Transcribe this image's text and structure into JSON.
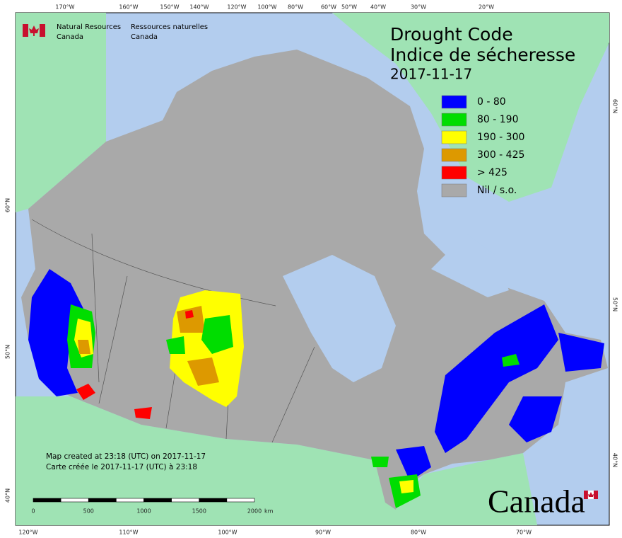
{
  "agency": {
    "en_line1": "Natural Resources",
    "en_line2": "Canada",
    "fr_line1": "Ressources naturelles",
    "fr_line2": "Canada"
  },
  "title": {
    "en": "Drought Code",
    "fr": "Indice de sécheresse",
    "date": "2017-11-17"
  },
  "legend": [
    {
      "label": "0 - 80",
      "color": "#0000ff"
    },
    {
      "label": "80 - 190",
      "color": "#00dd00"
    },
    {
      "label": "190 - 300",
      "color": "#ffff00"
    },
    {
      "label": "300 - 425",
      "color": "#dd9900"
    },
    {
      "label": "> 425",
      "color": "#ff0000"
    },
    {
      "label": "Nil / s.o.",
      "color": "#a9a9a9"
    }
  ],
  "graticule": {
    "top": [
      "170°W",
      "160°W",
      "150°W",
      "140°W",
      "120°W",
      "100°W",
      "80°W",
      "60°W",
      "50°W",
      "40°W",
      "30°W",
      "20°W"
    ],
    "left": [
      "60°N",
      "50°N",
      "40°N"
    ],
    "right": [
      "60°N",
      "50°N",
      "40°N"
    ],
    "bottom": [
      "120°W",
      "110°W",
      "100°W",
      "90°W",
      "80°W",
      "70°W"
    ]
  },
  "footer": [
    "Map created at 23:18 (UTC) on 2017-11-17",
    "Carte créée le 2017-11-17 (UTC) à 23:18"
  ],
  "scale_bar": {
    "ticks": [
      "0",
      "500",
      "1000",
      "1500",
      "2000"
    ],
    "unit": "km"
  },
  "wordmark": "Canada"
}
